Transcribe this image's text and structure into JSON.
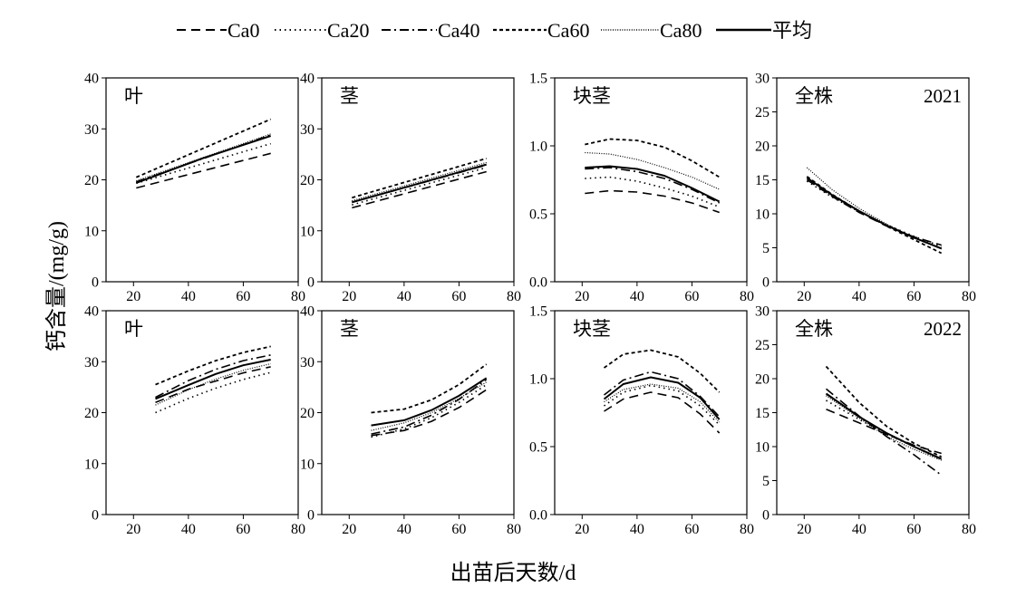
{
  "legend": {
    "items": [
      {
        "label": "Ca0",
        "style": "dash"
      },
      {
        "label": "Ca20",
        "style": "dot"
      },
      {
        "label": "Ca40",
        "style": "dashdot"
      },
      {
        "label": "Ca60",
        "style": "shortdash"
      },
      {
        "label": "Ca80",
        "style": "finedot"
      },
      {
        "label": "平均",
        "style": "solid"
      }
    ]
  },
  "ylabel": "钙含量/(mg/g)",
  "xlabel": "出苗后天数/d",
  "line_color": "#000000",
  "chart_data": [
    {
      "type": "line",
      "year": "2021",
      "title": "叶",
      "year_label": "",
      "xlim": [
        10,
        80
      ],
      "xticks": [
        20,
        40,
        60,
        80
      ],
      "ylim": [
        0,
        40
      ],
      "yticks": [
        0,
        10,
        20,
        30,
        40
      ],
      "series": [
        {
          "name": "Ca0",
          "x": [
            21,
            70
          ],
          "y": [
            18.4,
            25.2
          ]
        },
        {
          "name": "Ca20",
          "x": [
            21,
            70
          ],
          "y": [
            19.3,
            27.1
          ]
        },
        {
          "name": "Ca40",
          "x": [
            21,
            70
          ],
          "y": [
            19.6,
            28.8
          ]
        },
        {
          "name": "Ca60",
          "x": [
            21,
            70
          ],
          "y": [
            20.5,
            31.9
          ]
        },
        {
          "name": "Ca80",
          "x": [
            21,
            70
          ],
          "y": [
            19.8,
            29.0
          ]
        },
        {
          "name": "平均",
          "x": [
            21,
            45,
            70
          ],
          "y": [
            19.4,
            24.2,
            28.6
          ]
        }
      ]
    },
    {
      "type": "line",
      "year": "2021",
      "title": "茎",
      "year_label": "",
      "xlim": [
        10,
        80
      ],
      "xticks": [
        20,
        40,
        60,
        80
      ],
      "ylim": [
        0,
        40
      ],
      "yticks": [
        0,
        10,
        20,
        30,
        40
      ],
      "series": [
        {
          "name": "Ca0",
          "x": [
            21,
            70
          ],
          "y": [
            14.5,
            21.6
          ]
        },
        {
          "name": "Ca20",
          "x": [
            21,
            70
          ],
          "y": [
            15.1,
            22.4
          ]
        },
        {
          "name": "Ca40",
          "x": [
            21,
            70
          ],
          "y": [
            15.6,
            22.9
          ]
        },
        {
          "name": "Ca60",
          "x": [
            21,
            70
          ],
          "y": [
            16.5,
            24.2
          ]
        },
        {
          "name": "Ca80",
          "x": [
            21,
            70
          ],
          "y": [
            15.9,
            23.4
          ]
        },
        {
          "name": "平均",
          "x": [
            21,
            70
          ],
          "y": [
            15.6,
            23.0
          ]
        }
      ]
    },
    {
      "type": "line",
      "year": "2021",
      "title": "块茎",
      "year_label": "",
      "xlim": [
        10,
        80
      ],
      "xticks": [
        20,
        40,
        60,
        80
      ],
      "ylim": [
        0,
        1.5
      ],
      "yticks": [
        0.0,
        0.5,
        1.0,
        1.5
      ],
      "series": [
        {
          "name": "Ca0",
          "x": [
            21,
            30,
            40,
            50,
            60,
            70
          ],
          "y": [
            0.65,
            0.67,
            0.66,
            0.63,
            0.58,
            0.51
          ]
        },
        {
          "name": "Ca20",
          "x": [
            21,
            30,
            40,
            50,
            60,
            70
          ],
          "y": [
            0.76,
            0.77,
            0.74,
            0.69,
            0.63,
            0.55
          ]
        },
        {
          "name": "Ca40",
          "x": [
            21,
            30,
            40,
            50,
            60,
            70
          ],
          "y": [
            0.83,
            0.84,
            0.81,
            0.76,
            0.68,
            0.58
          ]
        },
        {
          "name": "Ca60",
          "x": [
            21,
            30,
            40,
            50,
            60,
            70
          ],
          "y": [
            1.01,
            1.05,
            1.04,
            0.99,
            0.89,
            0.77
          ]
        },
        {
          "name": "Ca80",
          "x": [
            21,
            30,
            40,
            50,
            60,
            70
          ],
          "y": [
            0.95,
            0.94,
            0.9,
            0.84,
            0.77,
            0.68
          ]
        },
        {
          "name": "平均",
          "x": [
            21,
            30,
            40,
            50,
            60,
            70
          ],
          "y": [
            0.84,
            0.85,
            0.83,
            0.78,
            0.69,
            0.59
          ]
        }
      ]
    },
    {
      "type": "line",
      "year": "2021",
      "title": "全株",
      "year_label": "2021",
      "xlim": [
        10,
        80
      ],
      "xticks": [
        20,
        40,
        60,
        80
      ],
      "ylim": [
        0,
        30
      ],
      "yticks": [
        0,
        5,
        10,
        15,
        20,
        25,
        30
      ],
      "series": [
        {
          "name": "Ca0",
          "x": [
            21,
            30,
            40,
            50,
            60,
            70
          ],
          "y": [
            15.0,
            12.6,
            10.2,
            8.2,
            6.6,
            5.4
          ]
        },
        {
          "name": "Ca20",
          "x": [
            21,
            30,
            40,
            50,
            60,
            70
          ],
          "y": [
            14.8,
            12.5,
            10.3,
            8.4,
            6.7,
            5.2
          ]
        },
        {
          "name": "Ca40",
          "x": [
            21,
            30,
            40,
            50,
            60,
            70
          ],
          "y": [
            15.3,
            12.8,
            10.4,
            8.3,
            6.5,
            4.9
          ]
        },
        {
          "name": "Ca60",
          "x": [
            21,
            30,
            40,
            50,
            60,
            70
          ],
          "y": [
            15.5,
            12.9,
            10.4,
            8.2,
            6.2,
            4.2
          ]
        },
        {
          "name": "Ca80",
          "x": [
            21,
            30,
            40,
            50,
            60,
            70
          ],
          "y": [
            16.8,
            13.6,
            10.8,
            8.5,
            6.5,
            4.8
          ]
        },
        {
          "name": "平均",
          "x": [
            21,
            30,
            40,
            50,
            60,
            70
          ],
          "y": [
            15.3,
            12.8,
            10.4,
            8.3,
            6.5,
            4.9
          ]
        }
      ]
    },
    {
      "type": "line",
      "year": "2022",
      "title": "叶",
      "year_label": "",
      "xlim": [
        10,
        80
      ],
      "xticks": [
        20,
        40,
        60,
        80
      ],
      "ylim": [
        0,
        40
      ],
      "yticks": [
        0,
        10,
        20,
        30,
        40
      ],
      "series": [
        {
          "name": "Ca0",
          "x": [
            28,
            40,
            50,
            60,
            70
          ],
          "y": [
            22.0,
            24.6,
            26.2,
            27.8,
            29.0
          ]
        },
        {
          "name": "Ca20",
          "x": [
            28,
            40,
            50,
            60,
            70
          ],
          "y": [
            20.0,
            22.8,
            24.8,
            26.5,
            27.9
          ]
        },
        {
          "name": "Ca40",
          "x": [
            28,
            40,
            50,
            60,
            70
          ],
          "y": [
            23.0,
            26.3,
            28.5,
            30.2,
            31.3
          ]
        },
        {
          "name": "Ca60",
          "x": [
            28,
            40,
            50,
            60,
            70
          ],
          "y": [
            25.5,
            28.2,
            30.2,
            31.8,
            33.0
          ]
        },
        {
          "name": "Ca80",
          "x": [
            28,
            40,
            50,
            60,
            70
          ],
          "y": [
            21.5,
            24.5,
            26.6,
            28.3,
            29.6
          ]
        },
        {
          "name": "平均",
          "x": [
            28,
            40,
            50,
            60,
            70
          ],
          "y": [
            22.7,
            25.4,
            27.6,
            29.3,
            30.4
          ]
        }
      ]
    },
    {
      "type": "line",
      "year": "2022",
      "title": "茎",
      "year_label": "",
      "xlim": [
        10,
        80
      ],
      "xticks": [
        20,
        40,
        60,
        80
      ],
      "ylim": [
        0,
        40
      ],
      "yticks": [
        0,
        10,
        20,
        30,
        40
      ],
      "series": [
        {
          "name": "Ca0",
          "x": [
            28,
            40,
            50,
            60,
            70
          ],
          "y": [
            15.5,
            16.5,
            18.3,
            21.0,
            24.5
          ]
        },
        {
          "name": "Ca20",
          "x": [
            28,
            40,
            50,
            60,
            70
          ],
          "y": [
            15.2,
            16.8,
            19.0,
            22.0,
            25.5
          ]
        },
        {
          "name": "Ca40",
          "x": [
            28,
            40,
            50,
            60,
            70
          ],
          "y": [
            15.8,
            17.2,
            19.5,
            22.6,
            26.5
          ]
        },
        {
          "name": "Ca60",
          "x": [
            28,
            40,
            50,
            60,
            70
          ],
          "y": [
            20.0,
            20.7,
            22.5,
            25.5,
            29.5
          ]
        },
        {
          "name": "Ca80",
          "x": [
            28,
            40,
            50,
            60,
            70
          ],
          "y": [
            16.5,
            18.0,
            20.0,
            22.8,
            26.0
          ]
        },
        {
          "name": "平均",
          "x": [
            28,
            40,
            50,
            60,
            70
          ],
          "y": [
            17.5,
            18.5,
            20.5,
            23.3,
            26.8
          ]
        }
      ]
    },
    {
      "type": "line",
      "year": "2022",
      "title": "块茎",
      "year_label": "",
      "xlim": [
        10,
        80
      ],
      "xticks": [
        20,
        40,
        60,
        80
      ],
      "ylim": [
        0,
        1.5
      ],
      "yticks": [
        0.0,
        0.5,
        1.0,
        1.5
      ],
      "series": [
        {
          "name": "Ca0",
          "x": [
            28,
            35,
            45,
            55,
            63,
            70
          ],
          "y": [
            0.76,
            0.85,
            0.9,
            0.86,
            0.74,
            0.6
          ]
        },
        {
          "name": "Ca20",
          "x": [
            28,
            35,
            45,
            55,
            63,
            70
          ],
          "y": [
            0.8,
            0.9,
            0.95,
            0.91,
            0.8,
            0.66
          ]
        },
        {
          "name": "Ca40",
          "x": [
            28,
            35,
            45,
            55,
            63,
            70
          ],
          "y": [
            0.88,
            0.99,
            1.05,
            1.0,
            0.87,
            0.72
          ]
        },
        {
          "name": "Ca60",
          "x": [
            28,
            35,
            45,
            55,
            63,
            70
          ],
          "y": [
            1.08,
            1.18,
            1.21,
            1.16,
            1.04,
            0.9
          ]
        },
        {
          "name": "Ca80",
          "x": [
            28,
            35,
            45,
            55,
            63,
            70
          ],
          "y": [
            0.83,
            0.92,
            0.96,
            0.93,
            0.83,
            0.68
          ]
        },
        {
          "name": "平均",
          "x": [
            28,
            35,
            45,
            55,
            63,
            70
          ],
          "y": [
            0.85,
            0.96,
            1.01,
            0.97,
            0.86,
            0.7
          ]
        }
      ]
    },
    {
      "type": "line",
      "year": "2022",
      "title": "全株",
      "year_label": "2022",
      "xlim": [
        10,
        80
      ],
      "xticks": [
        20,
        40,
        60,
        80
      ],
      "ylim": [
        0,
        30
      ],
      "yticks": [
        0,
        5,
        10,
        15,
        20,
        25,
        30
      ],
      "series": [
        {
          "name": "Ca0",
          "x": [
            28,
            40,
            50,
            60,
            70
          ],
          "y": [
            15.5,
            13.5,
            11.8,
            10.2,
            9.0
          ]
        },
        {
          "name": "Ca20",
          "x": [
            28,
            40,
            50,
            60,
            70
          ],
          "y": [
            16.8,
            14.0,
            11.8,
            10.0,
            8.0
          ]
        },
        {
          "name": "Ca40",
          "x": [
            28,
            40,
            50,
            60,
            70
          ],
          "y": [
            18.5,
            14.5,
            11.5,
            8.8,
            5.8
          ]
        },
        {
          "name": "Ca60",
          "x": [
            28,
            40,
            50,
            60,
            70
          ],
          "y": [
            21.8,
            16.5,
            13.0,
            10.5,
            8.5
          ]
        },
        {
          "name": "Ca80",
          "x": [
            28,
            40,
            50,
            60,
            70
          ],
          "y": [
            17.5,
            14.2,
            11.5,
            9.6,
            8.0
          ]
        },
        {
          "name": "平均",
          "x": [
            28,
            40,
            50,
            60,
            70
          ],
          "y": [
            17.8,
            14.4,
            12.0,
            10.0,
            8.2
          ]
        }
      ]
    }
  ]
}
